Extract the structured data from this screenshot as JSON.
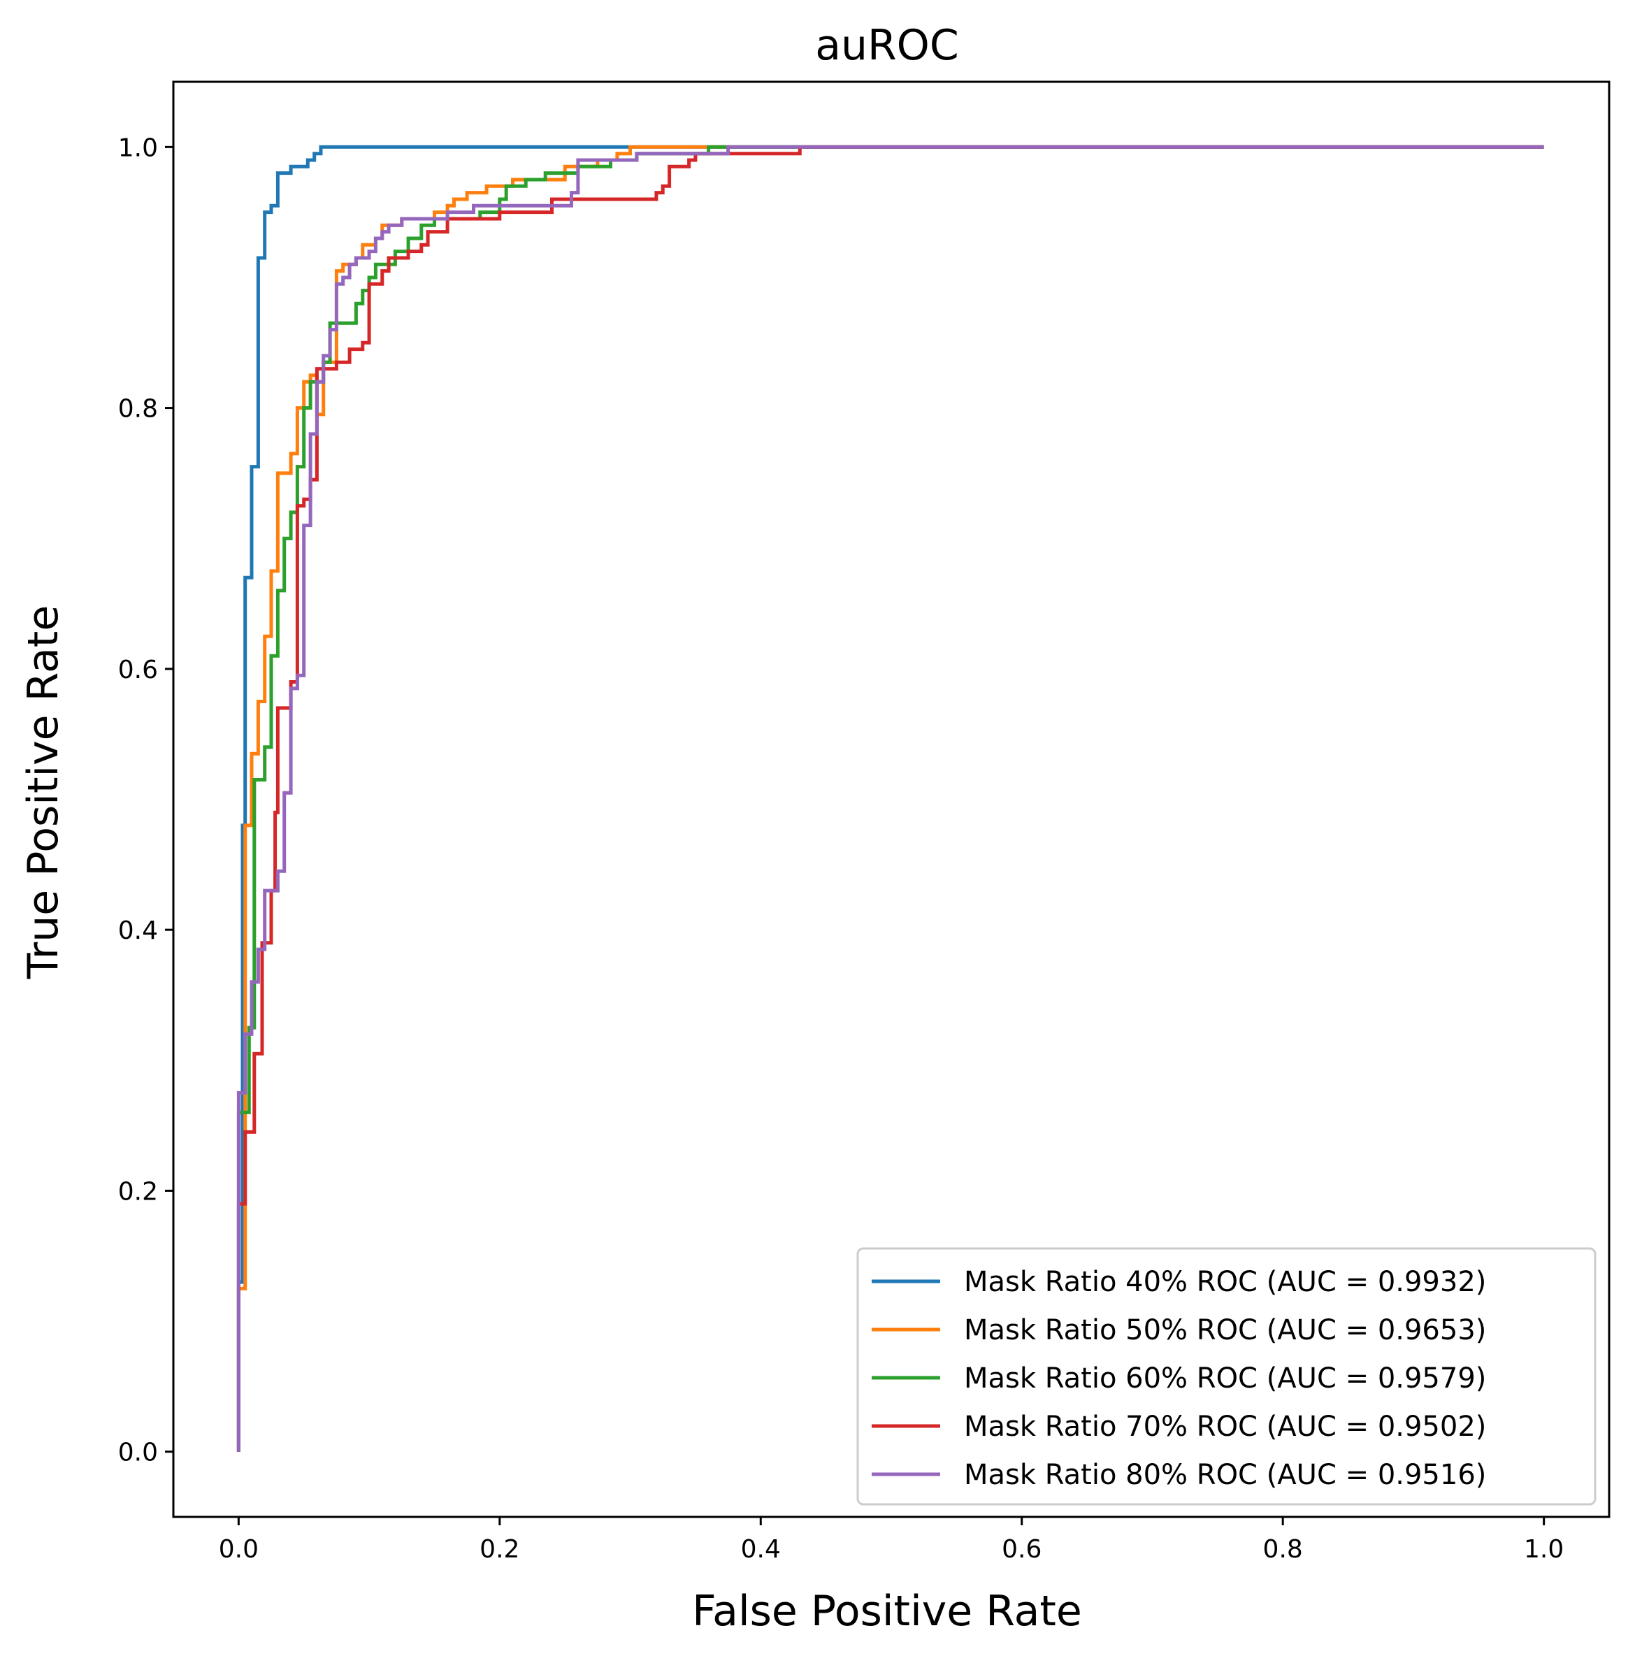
{
  "chart_data": {
    "type": "line",
    "title": "auROC",
    "xlabel": "False Positive Rate",
    "ylabel": "True Positive Rate",
    "xlim": [
      -0.05,
      1.05
    ],
    "ylim": [
      -0.05,
      1.05
    ],
    "xticks": [
      0.0,
      0.2,
      0.4,
      0.6,
      0.8,
      1.0
    ],
    "xtick_labels": [
      "0.0",
      "0.2",
      "0.4",
      "0.6",
      "0.8",
      "1.0"
    ],
    "yticks": [
      0.0,
      0.2,
      0.4,
      0.6,
      0.8,
      1.0
    ],
    "ytick_labels": [
      "0.0",
      "0.2",
      "0.4",
      "0.6",
      "0.8",
      "1.0"
    ],
    "grid": false,
    "legend_position": "bottom-right",
    "series": [
      {
        "name": "Mask Ratio 40% ROC (AUC = 0.9932)",
        "color": "#1f77b4",
        "points": [
          [
            0,
            0
          ],
          [
            0,
            0.13
          ],
          [
            0.003,
            0.13
          ],
          [
            0.003,
            0.48
          ],
          [
            0.005,
            0.48
          ],
          [
            0.005,
            0.67
          ],
          [
            0.01,
            0.67
          ],
          [
            0.01,
            0.755
          ],
          [
            0.015,
            0.755
          ],
          [
            0.015,
            0.915
          ],
          [
            0.02,
            0.915
          ],
          [
            0.02,
            0.95
          ],
          [
            0.025,
            0.95
          ],
          [
            0.025,
            0.955
          ],
          [
            0.03,
            0.955
          ],
          [
            0.03,
            0.98
          ],
          [
            0.037,
            0.98
          ],
          [
            0.037,
            0.98
          ],
          [
            0.04,
            0.98
          ],
          [
            0.04,
            0.985
          ],
          [
            0.053,
            0.985
          ],
          [
            0.053,
            0.99
          ],
          [
            0.058,
            0.99
          ],
          [
            0.058,
            0.995
          ],
          [
            0.063,
            0.995
          ],
          [
            0.063,
            1.0
          ],
          [
            1.0,
            1.0
          ]
        ]
      },
      {
        "name": "Mask Ratio 50% ROC (AUC = 0.9653)",
        "color": "#ff7f0e",
        "points": [
          [
            0,
            0
          ],
          [
            0,
            0.125
          ],
          [
            0.005,
            0.125
          ],
          [
            0.005,
            0.48
          ],
          [
            0.01,
            0.48
          ],
          [
            0.01,
            0.535
          ],
          [
            0.015,
            0.535
          ],
          [
            0.015,
            0.575
          ],
          [
            0.02,
            0.575
          ],
          [
            0.02,
            0.625
          ],
          [
            0.025,
            0.625
          ],
          [
            0.025,
            0.675
          ],
          [
            0.03,
            0.675
          ],
          [
            0.03,
            0.75
          ],
          [
            0.04,
            0.75
          ],
          [
            0.04,
            0.765
          ],
          [
            0.045,
            0.765
          ],
          [
            0.045,
            0.8
          ],
          [
            0.05,
            0.8
          ],
          [
            0.05,
            0.82
          ],
          [
            0.055,
            0.82
          ],
          [
            0.055,
            0.825
          ],
          [
            0.06,
            0.825
          ],
          [
            0.06,
            0.795
          ],
          [
            0.065,
            0.795
          ],
          [
            0.065,
            0.835
          ],
          [
            0.075,
            0.835
          ],
          [
            0.075,
            0.905
          ],
          [
            0.08,
            0.905
          ],
          [
            0.08,
            0.91
          ],
          [
            0.09,
            0.91
          ],
          [
            0.09,
            0.915
          ],
          [
            0.095,
            0.915
          ],
          [
            0.095,
            0.925
          ],
          [
            0.105,
            0.925
          ],
          [
            0.105,
            0.93
          ],
          [
            0.11,
            0.93
          ],
          [
            0.11,
            0.94
          ],
          [
            0.125,
            0.94
          ],
          [
            0.125,
            0.945
          ],
          [
            0.15,
            0.945
          ],
          [
            0.15,
            0.95
          ],
          [
            0.16,
            0.95
          ],
          [
            0.16,
            0.955
          ],
          [
            0.165,
            0.955
          ],
          [
            0.165,
            0.96
          ],
          [
            0.175,
            0.96
          ],
          [
            0.175,
            0.965
          ],
          [
            0.19,
            0.965
          ],
          [
            0.19,
            0.97
          ],
          [
            0.21,
            0.97
          ],
          [
            0.21,
            0.975
          ],
          [
            0.25,
            0.975
          ],
          [
            0.25,
            0.985
          ],
          [
            0.275,
            0.985
          ],
          [
            0.275,
            0.99
          ],
          [
            0.29,
            0.99
          ],
          [
            0.29,
            0.995
          ],
          [
            0.3,
            0.995
          ],
          [
            0.3,
            1.0
          ],
          [
            1.0,
            1.0
          ]
        ]
      },
      {
        "name": "Mask Ratio 60% ROC (AUC = 0.9579)",
        "color": "#2ca02c",
        "points": [
          [
            0,
            0
          ],
          [
            0,
            0.26
          ],
          [
            0.008,
            0.26
          ],
          [
            0.008,
            0.325
          ],
          [
            0.012,
            0.325
          ],
          [
            0.012,
            0.515
          ],
          [
            0.02,
            0.515
          ],
          [
            0.02,
            0.54
          ],
          [
            0.025,
            0.54
          ],
          [
            0.025,
            0.61
          ],
          [
            0.03,
            0.61
          ],
          [
            0.03,
            0.66
          ],
          [
            0.035,
            0.66
          ],
          [
            0.035,
            0.7
          ],
          [
            0.04,
            0.7
          ],
          [
            0.04,
            0.72
          ],
          [
            0.045,
            0.72
          ],
          [
            0.045,
            0.755
          ],
          [
            0.05,
            0.755
          ],
          [
            0.05,
            0.8
          ],
          [
            0.055,
            0.8
          ],
          [
            0.055,
            0.82
          ],
          [
            0.065,
            0.82
          ],
          [
            0.065,
            0.835
          ],
          [
            0.07,
            0.835
          ],
          [
            0.07,
            0.865
          ],
          [
            0.09,
            0.865
          ],
          [
            0.09,
            0.88
          ],
          [
            0.095,
            0.88
          ],
          [
            0.095,
            0.89
          ],
          [
            0.1,
            0.89
          ],
          [
            0.1,
            0.9
          ],
          [
            0.105,
            0.9
          ],
          [
            0.105,
            0.91
          ],
          [
            0.12,
            0.91
          ],
          [
            0.12,
            0.92
          ],
          [
            0.13,
            0.92
          ],
          [
            0.13,
            0.93
          ],
          [
            0.14,
            0.93
          ],
          [
            0.14,
            0.94
          ],
          [
            0.15,
            0.94
          ],
          [
            0.15,
            0.945
          ],
          [
            0.185,
            0.945
          ],
          [
            0.185,
            0.95
          ],
          [
            0.2,
            0.95
          ],
          [
            0.2,
            0.96
          ],
          [
            0.205,
            0.96
          ],
          [
            0.205,
            0.97
          ],
          [
            0.22,
            0.97
          ],
          [
            0.22,
            0.975
          ],
          [
            0.235,
            0.975
          ],
          [
            0.235,
            0.98
          ],
          [
            0.26,
            0.98
          ],
          [
            0.26,
            0.985
          ],
          [
            0.285,
            0.985
          ],
          [
            0.285,
            0.99
          ],
          [
            0.305,
            0.99
          ],
          [
            0.305,
            0.995
          ],
          [
            0.36,
            0.995
          ],
          [
            0.36,
            1.0
          ],
          [
            1.0,
            1.0
          ]
        ]
      },
      {
        "name": "Mask Ratio 70% ROC (AUC = 0.9502)",
        "color": "#d62728",
        "points": [
          [
            0,
            0
          ],
          [
            0,
            0.19
          ],
          [
            0.005,
            0.19
          ],
          [
            0.005,
            0.245
          ],
          [
            0.012,
            0.245
          ],
          [
            0.012,
            0.305
          ],
          [
            0.018,
            0.305
          ],
          [
            0.018,
            0.39
          ],
          [
            0.025,
            0.39
          ],
          [
            0.025,
            0.43
          ],
          [
            0.028,
            0.43
          ],
          [
            0.028,
            0.49
          ],
          [
            0.03,
            0.49
          ],
          [
            0.03,
            0.57
          ],
          [
            0.04,
            0.57
          ],
          [
            0.04,
            0.59
          ],
          [
            0.045,
            0.59
          ],
          [
            0.045,
            0.725
          ],
          [
            0.05,
            0.725
          ],
          [
            0.05,
            0.73
          ],
          [
            0.055,
            0.73
          ],
          [
            0.055,
            0.745
          ],
          [
            0.06,
            0.745
          ],
          [
            0.06,
            0.83
          ],
          [
            0.075,
            0.83
          ],
          [
            0.075,
            0.835
          ],
          [
            0.085,
            0.835
          ],
          [
            0.085,
            0.845
          ],
          [
            0.095,
            0.845
          ],
          [
            0.095,
            0.85
          ],
          [
            0.1,
            0.85
          ],
          [
            0.1,
            0.895
          ],
          [
            0.11,
            0.895
          ],
          [
            0.11,
            0.905
          ],
          [
            0.115,
            0.905
          ],
          [
            0.115,
            0.915
          ],
          [
            0.13,
            0.915
          ],
          [
            0.13,
            0.92
          ],
          [
            0.14,
            0.92
          ],
          [
            0.14,
            0.925
          ],
          [
            0.145,
            0.925
          ],
          [
            0.145,
            0.935
          ],
          [
            0.16,
            0.935
          ],
          [
            0.16,
            0.945
          ],
          [
            0.2,
            0.945
          ],
          [
            0.2,
            0.95
          ],
          [
            0.24,
            0.95
          ],
          [
            0.24,
            0.96
          ],
          [
            0.32,
            0.96
          ],
          [
            0.32,
            0.965
          ],
          [
            0.325,
            0.965
          ],
          [
            0.325,
            0.97
          ],
          [
            0.33,
            0.97
          ],
          [
            0.33,
            0.985
          ],
          [
            0.345,
            0.985
          ],
          [
            0.345,
            0.99
          ],
          [
            0.35,
            0.99
          ],
          [
            0.35,
            0.995
          ],
          [
            0.43,
            0.995
          ],
          [
            0.43,
            1.0
          ],
          [
            1.0,
            1.0
          ]
        ]
      },
      {
        "name": "Mask Ratio 80% ROC (AUC = 0.9516)",
        "color": "#9467bd",
        "points": [
          [
            0,
            0
          ],
          [
            0,
            0.275
          ],
          [
            0.005,
            0.275
          ],
          [
            0.005,
            0.32
          ],
          [
            0.01,
            0.32
          ],
          [
            0.01,
            0.36
          ],
          [
            0.015,
            0.36
          ],
          [
            0.015,
            0.385
          ],
          [
            0.02,
            0.385
          ],
          [
            0.02,
            0.43
          ],
          [
            0.03,
            0.43
          ],
          [
            0.03,
            0.445
          ],
          [
            0.035,
            0.445
          ],
          [
            0.035,
            0.505
          ],
          [
            0.04,
            0.505
          ],
          [
            0.04,
            0.585
          ],
          [
            0.045,
            0.585
          ],
          [
            0.045,
            0.595
          ],
          [
            0.05,
            0.595
          ],
          [
            0.05,
            0.71
          ],
          [
            0.055,
            0.71
          ],
          [
            0.055,
            0.78
          ],
          [
            0.06,
            0.78
          ],
          [
            0.06,
            0.82
          ],
          [
            0.065,
            0.82
          ],
          [
            0.065,
            0.84
          ],
          [
            0.07,
            0.84
          ],
          [
            0.07,
            0.86
          ],
          [
            0.075,
            0.86
          ],
          [
            0.075,
            0.895
          ],
          [
            0.08,
            0.895
          ],
          [
            0.08,
            0.9
          ],
          [
            0.085,
            0.9
          ],
          [
            0.085,
            0.91
          ],
          [
            0.09,
            0.91
          ],
          [
            0.09,
            0.915
          ],
          [
            0.1,
            0.915
          ],
          [
            0.1,
            0.92
          ],
          [
            0.105,
            0.92
          ],
          [
            0.105,
            0.93
          ],
          [
            0.11,
            0.93
          ],
          [
            0.11,
            0.935
          ],
          [
            0.115,
            0.935
          ],
          [
            0.115,
            0.94
          ],
          [
            0.125,
            0.94
          ],
          [
            0.125,
            0.945
          ],
          [
            0.16,
            0.945
          ],
          [
            0.16,
            0.95
          ],
          [
            0.18,
            0.95
          ],
          [
            0.18,
            0.955
          ],
          [
            0.255,
            0.955
          ],
          [
            0.255,
            0.965
          ],
          [
            0.26,
            0.965
          ],
          [
            0.26,
            0.99
          ],
          [
            0.305,
            0.99
          ],
          [
            0.305,
            0.995
          ],
          [
            0.375,
            0.995
          ],
          [
            0.375,
            1.0
          ],
          [
            1.0,
            1.0
          ]
        ]
      }
    ]
  }
}
